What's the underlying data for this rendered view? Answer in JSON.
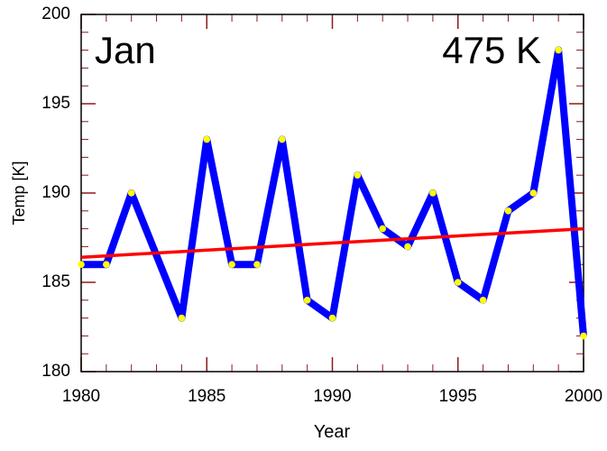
{
  "chart_data": {
    "type": "line",
    "xlabel": "Year",
    "ylabel": "Temp [K]",
    "annotations": [
      "Jan",
      "475 K"
    ],
    "x": [
      1980,
      1981,
      1982,
      1984,
      1985,
      1986,
      1987,
      1988,
      1989,
      1990,
      1991,
      1992,
      1993,
      1994,
      1995,
      1996,
      1997,
      1998,
      1999,
      2000
    ],
    "series": [
      {
        "color": "#0000ff",
        "marker_color": "#ffff00",
        "values": [
          186,
          186,
          190,
          183,
          193,
          186,
          186,
          193,
          184,
          183,
          191,
          188,
          187,
          190,
          185,
          184,
          189,
          190,
          198,
          182
        ]
      }
    ],
    "trend": {
      "x": [
        1980,
        2000
      ],
      "values": [
        186.4,
        188.0
      ],
      "color": "#ff0000"
    },
    "xlim": [
      1980,
      2000
    ],
    "xticks": [
      1980,
      1985,
      1990,
      1995,
      2000
    ],
    "xminorticks": [
      1980,
      1981,
      1982,
      1983,
      1984,
      1985,
      1986,
      1987,
      1988,
      1989,
      1990,
      1991,
      1992,
      1993,
      1994,
      1995,
      1996,
      1997,
      1998,
      1999,
      2000
    ],
    "ylim": [
      180,
      200
    ],
    "yticks": [
      180,
      185,
      190,
      195,
      200
    ],
    "yminorticks": [
      180,
      181,
      182,
      183,
      184,
      185,
      186,
      187,
      188,
      189,
      190,
      191,
      192,
      193,
      194,
      195,
      196,
      197,
      198,
      199,
      200
    ],
    "tick_color": "#8b1a1a",
    "grid": false
  }
}
